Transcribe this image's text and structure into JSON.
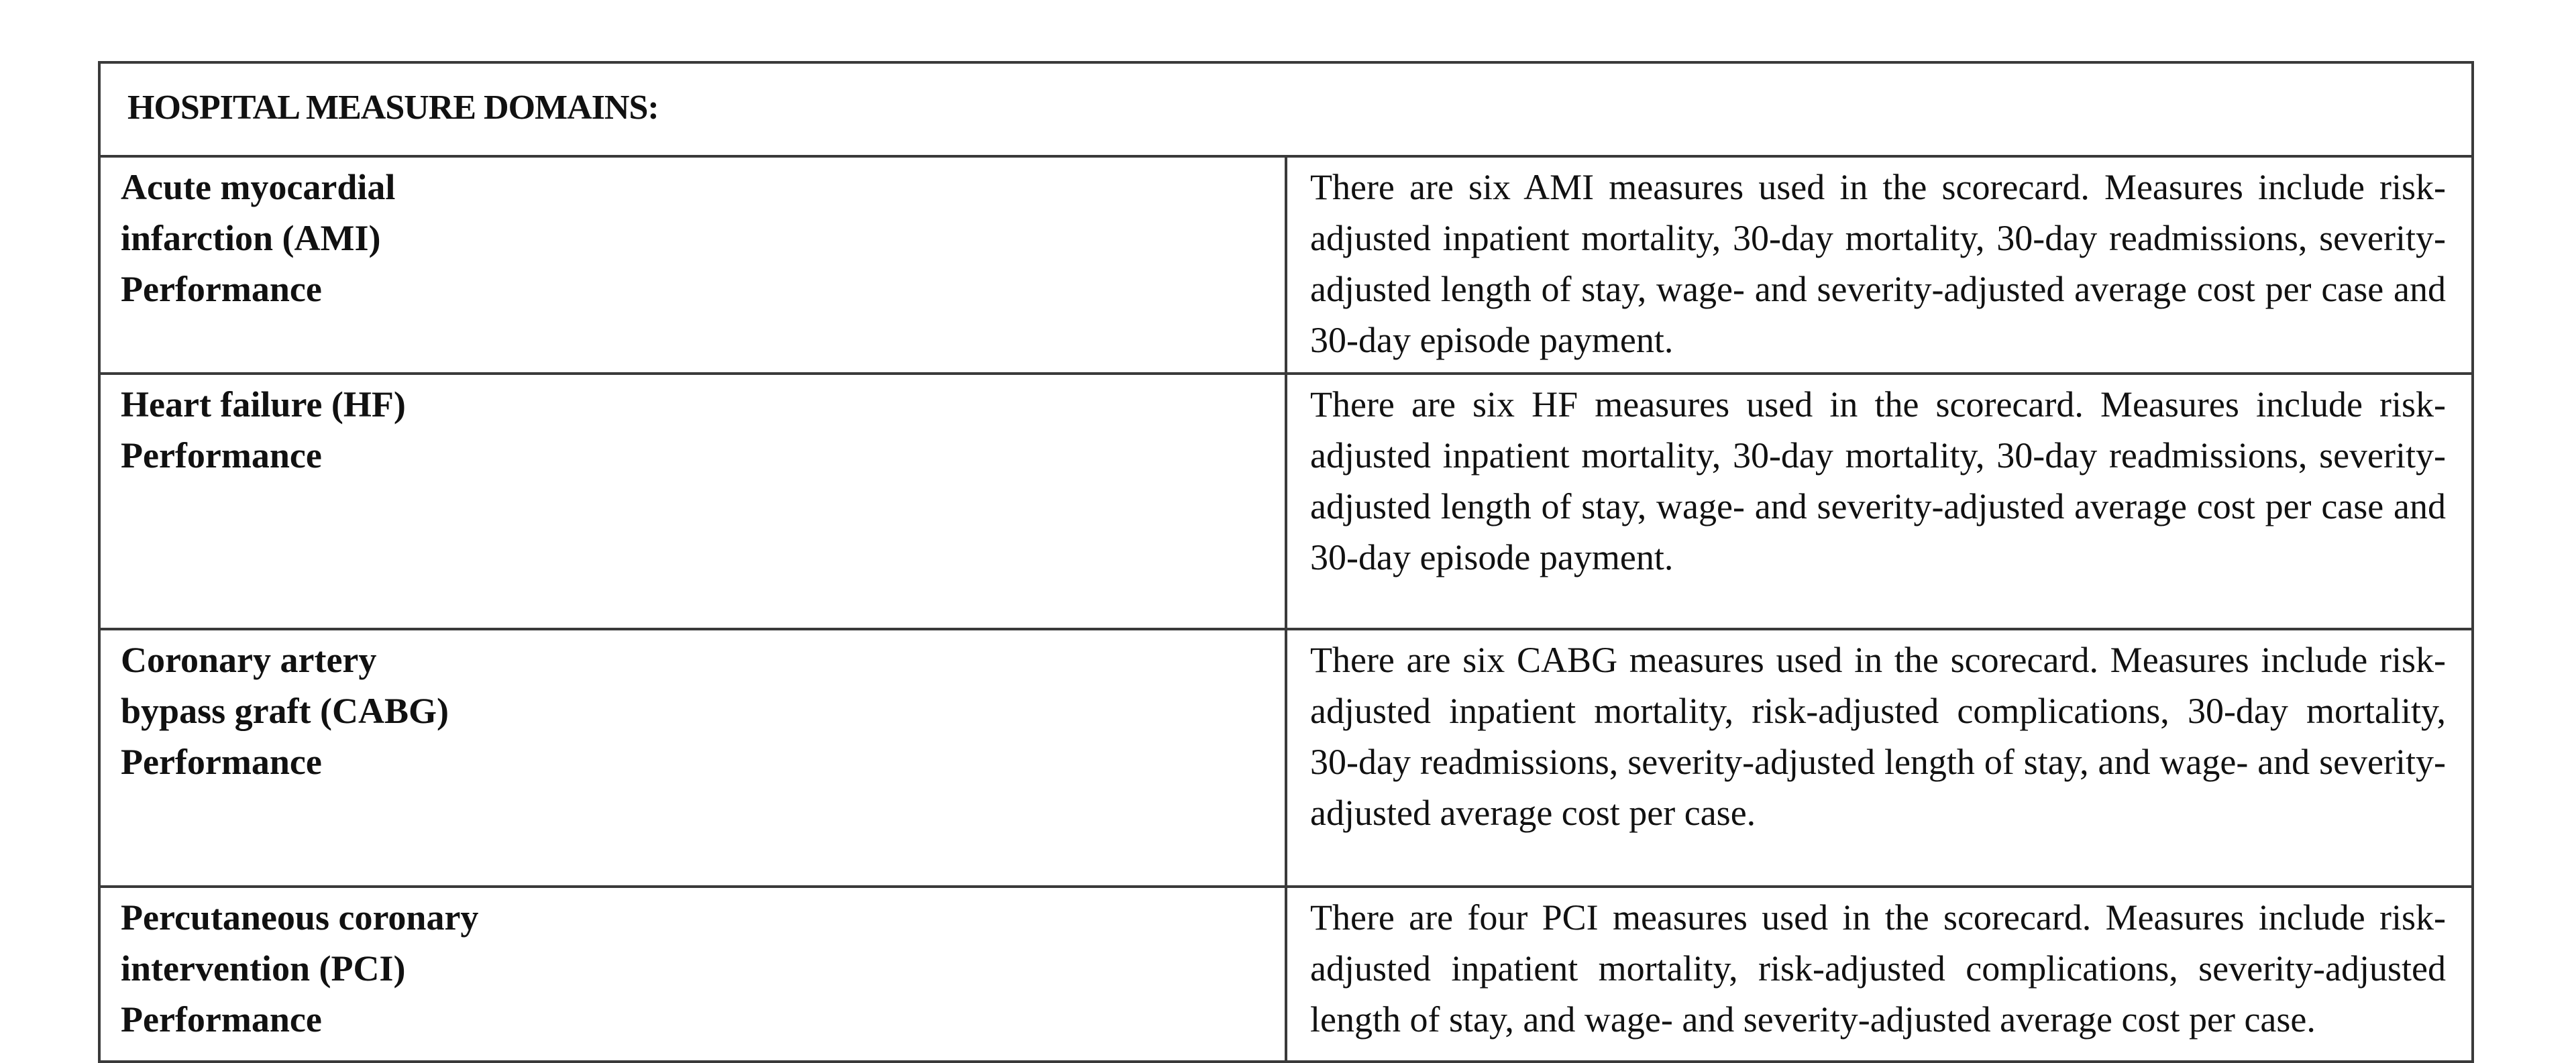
{
  "title": "HOSPITAL MEASURE DOMAINS:",
  "rows": [
    {
      "domain_lines": [
        "Acute myocardial",
        "infarction (AMI)",
        "Performance"
      ],
      "description": "There are six AMI measures used in the scorecard. Measures include risk-adjusted inpatient mortality, 30-day mortality, 30-day readmissions, severity-adjusted length of stay, wage- and severity-adjusted average cost per case and 30-day episode payment."
    },
    {
      "domain_lines": [
        "Heart failure (HF)",
        "Performance"
      ],
      "description": "There are six HF measures used in the scorecard. Measures include risk-adjusted inpatient mortality, 30-day mortality, 30-day readmissions, severity-adjusted length of stay, wage- and severity-adjusted average cost per case and 30-day episode payment."
    },
    {
      "domain_lines": [
        "Coronary artery",
        "bypass graft (CABG)",
        "Performance"
      ],
      "description": "There are six CABG measures used in the scorecard. Measures include risk-adjusted inpatient mortality, risk-adjusted complications, 30-day mortality, 30-day readmissions, severity-adjusted length of stay, and wage- and severity-adjusted average cost per case."
    },
    {
      "domain_lines": [
        "Percutaneous coronary",
        "intervention (PCI)",
        "Performance"
      ],
      "description": "There are four PCI measures used in the scorecard. Measures include risk-adjusted inpatient mortality, risk-adjusted complications, severity-adjusted length of stay, and wage- and severity-adjusted average cost per case."
    }
  ]
}
